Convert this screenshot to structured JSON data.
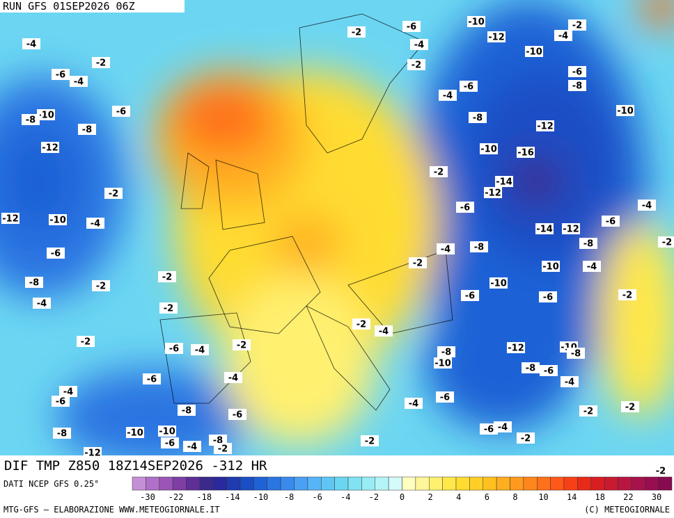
{
  "header": {
    "run": "RUN GFS 01SEP2026 06Z"
  },
  "map": {
    "title": "DIF TMP Z850 18Z14SEP2026 -312 HR",
    "contour_labels": [
      -4,
      -2,
      -6,
      -4,
      -6,
      -10,
      -8,
      -8,
      -12,
      -2,
      -12,
      -10,
      -4,
      -6,
      -8,
      -2,
      -4,
      -2,
      -2,
      -2,
      -6,
      -4,
      -2,
      -6,
      -4,
      -4,
      -6,
      -8,
      -6,
      -8,
      -10,
      -10,
      -6,
      -4,
      -8,
      -2,
      -12,
      -2,
      -6,
      -4,
      -2,
      -10,
      -12,
      -4,
      -2,
      -10,
      -6,
      -8,
      -6,
      -4,
      -8,
      -12,
      -10,
      -10,
      -16,
      -2,
      -14,
      -12,
      -6,
      -4,
      -6,
      -14,
      -12,
      -8,
      -8,
      -4,
      -2,
      -10,
      -4,
      -10,
      -6,
      -6,
      -2,
      -2,
      -4,
      -8,
      -10,
      -12,
      -10,
      -8,
      -8,
      -6,
      -4,
      -6,
      -4,
      -2,
      -2,
      -6,
      -4,
      -2,
      -2,
      -2,
      -2
    ]
  },
  "footer": {
    "source": "DATI NCEP GFS 0.25°",
    "credit": "MTG-GFS — ELABORAZIONE WWW.METEOGIORNALE.IT",
    "copyright": "(C) METEOGIORNALE"
  },
  "colorbar": {
    "colors": [
      "#c58fd6",
      "#b070c8",
      "#9a55b6",
      "#7e3ea3",
      "#5e2f98",
      "#3b2a8c",
      "#2a2a9c",
      "#1f3bb0",
      "#1a4ec4",
      "#1f62d6",
      "#2a75e2",
      "#3a8aee",
      "#4aa0f4",
      "#57b4f6",
      "#5fc6f4",
      "#6cd6f2",
      "#80e2f2",
      "#98ecf4",
      "#b4f4f6",
      "#d4fafa",
      "#ffffc0",
      "#fff59a",
      "#fff070",
      "#ffe84a",
      "#ffdc30",
      "#ffcf28",
      "#ffc020",
      "#ffae20",
      "#ff9a1e",
      "#ff861c",
      "#ff701a",
      "#ff5818",
      "#f84018",
      "#e82a18",
      "#d81e22",
      "#c81a30",
      "#b81640",
      "#a8124c",
      "#980e50",
      "#880a50"
    ],
    "ticks": [
      -30,
      -22,
      -18,
      -14,
      -10,
      -8,
      -6,
      -4,
      -2,
      0,
      2,
      4,
      6,
      8,
      10,
      14,
      18,
      22,
      30
    ]
  }
}
